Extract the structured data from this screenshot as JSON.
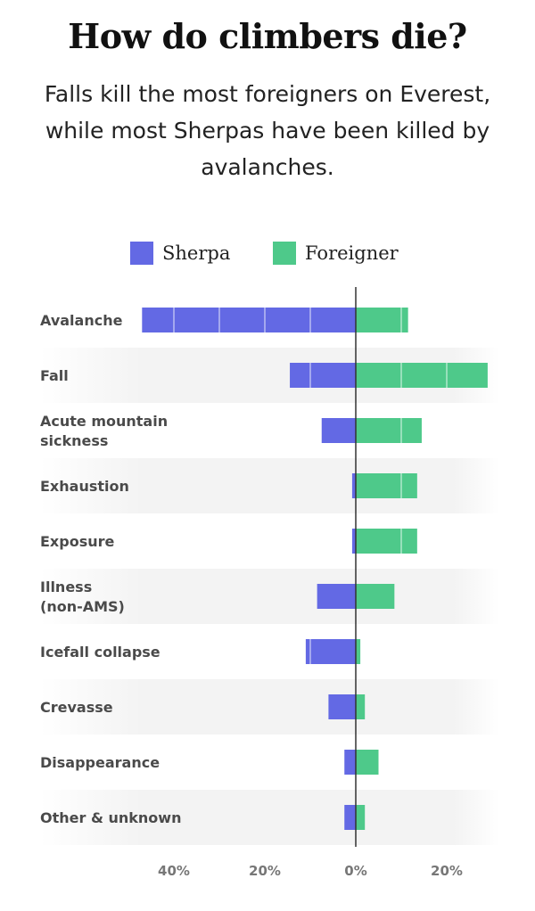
{
  "chart_data": {
    "type": "bar",
    "orientation": "horizontal-diverging",
    "title": "How do climbers die?",
    "subtitle": "Falls kill the most foreigners on Everest, while most Sherpas have been killed by avalanches.",
    "categories": [
      [
        "Avalanche"
      ],
      [
        "Fall"
      ],
      [
        "Acute mountain",
        "sickness"
      ],
      [
        "Exhaustion"
      ],
      [
        "Exposure"
      ],
      [
        "Illness",
        "(non-AMS)"
      ],
      [
        "Icefall collapse"
      ],
      [
        "Crevasse"
      ],
      [
        "Disappearance"
      ],
      [
        "Other & unknown"
      ]
    ],
    "series": [
      {
        "name": "Sherpa",
        "color": "#6369e4",
        "direction": "left",
        "values": [
          47,
          14.5,
          7.5,
          0.8,
          0.8,
          8.5,
          11,
          6,
          2.5,
          2.5
        ]
      },
      {
        "name": "Foreigner",
        "color": "#4ec98a",
        "direction": "right",
        "values": [
          11.5,
          29,
          14.5,
          13.5,
          13.5,
          8.5,
          1,
          2,
          5,
          2
        ]
      }
    ],
    "xlim_left": 47,
    "xlim_right": 29,
    "ticks": [
      {
        "value": -40,
        "label": "40%"
      },
      {
        "value": -20,
        "label": "20%"
      },
      {
        "value": 0,
        "label": "0%"
      },
      {
        "value": 20,
        "label": "20%"
      }
    ],
    "legend_position": "top-center",
    "grid": true
  }
}
